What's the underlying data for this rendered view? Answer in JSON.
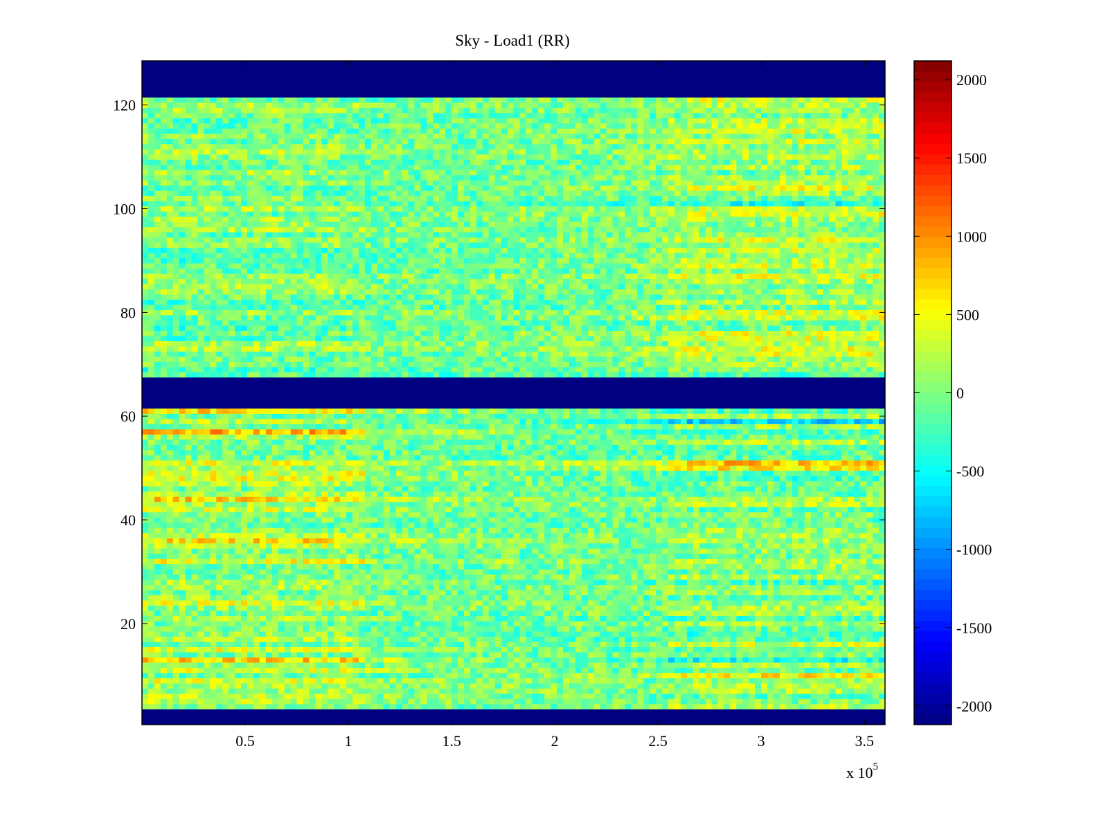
{
  "chart_data": {
    "type": "heatmap",
    "title": "Sky - Load1 (RR)",
    "xlabel": "",
    "ylabel": "",
    "x_multiplier_label": "x 10",
    "x_multiplier_exponent": "5",
    "xlim": [
      0,
      360000
    ],
    "ylim": [
      0.5,
      128.5
    ],
    "xticks": [
      50000,
      100000,
      150000,
      200000,
      250000,
      300000,
      350000
    ],
    "xtick_labels": [
      "0.5",
      "1",
      "1.5",
      "2",
      "2.5",
      "3",
      "3.5"
    ],
    "yticks": [
      20,
      40,
      60,
      80,
      100,
      120
    ],
    "ytick_labels": [
      "20",
      "40",
      "60",
      "80",
      "100",
      "120"
    ],
    "rows": 128,
    "colormap": "jet",
    "clim": [
      -2120,
      2120
    ],
    "colorbar": {
      "ticks": [
        2000,
        1500,
        1000,
        500,
        0,
        -500,
        -1000,
        -1500,
        -2000
      ],
      "tick_labels": [
        "2000",
        "1500",
        "1000",
        "500",
        "0",
        "-500",
        "-1000",
        "-1500",
        "-2000"
      ]
    },
    "masked_rows_at_min": [
      [
        1,
        3
      ],
      [
        62,
        67
      ],
      [
        122,
        128
      ]
    ],
    "typical_range": [
      -800,
      800
    ],
    "hot_rows_left": [
      13,
      36,
      44,
      57,
      61
    ],
    "hot_rows_right": [
      10,
      16,
      50,
      51
    ],
    "cold_rows_right": [
      13,
      59,
      101
    ]
  }
}
